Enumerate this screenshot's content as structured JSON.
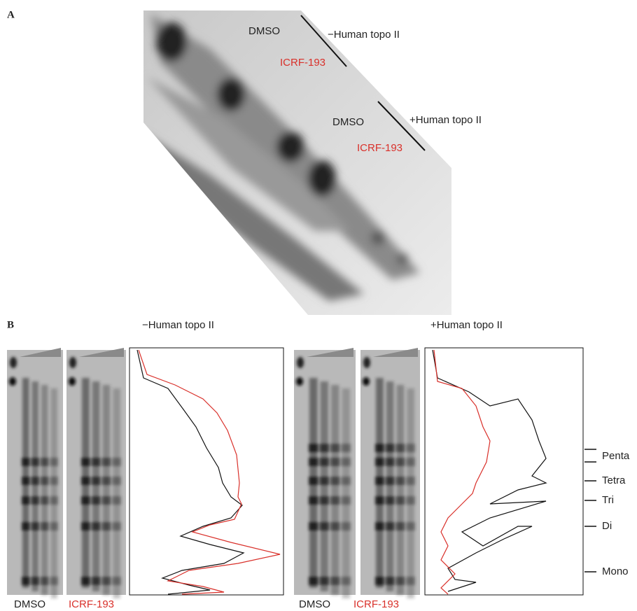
{
  "panel_a": {
    "label": "A",
    "upper": {
      "control": "DMSO",
      "treatment": "ICRF-193",
      "condition": "−Human topo II"
    },
    "lower": {
      "control": "DMSO",
      "treatment": "ICRF-193",
      "condition": "+Human topo II"
    }
  },
  "panel_b": {
    "label": "B",
    "left": {
      "title": "−Human topo II",
      "control": "DMSO",
      "treatment": "ICRF-193"
    },
    "right": {
      "title": "+Human topo II",
      "control": "DMSO",
      "treatment": "ICRF-193"
    },
    "bands": [
      "Penta",
      "Tetra",
      "Tri",
      "Di",
      "Mono"
    ]
  }
}
